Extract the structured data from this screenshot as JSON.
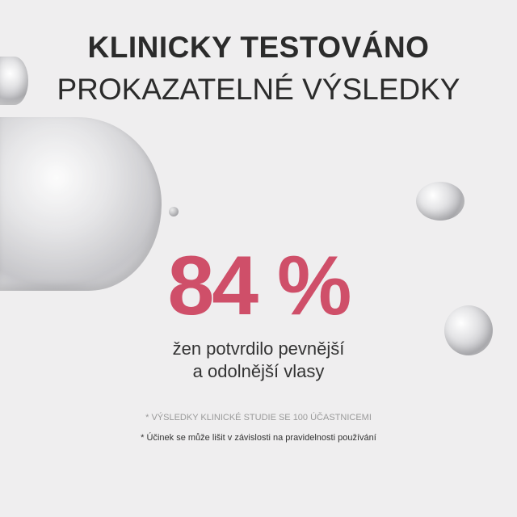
{
  "headline": {
    "line1": "KLINICKY TESTOVÁNO",
    "line2": "PROKAZATELNÉ VÝSLEDKY"
  },
  "stat": {
    "value": "84 %",
    "line1": "žen potvrdilo pevnější",
    "line2": "a odolnější vlasy"
  },
  "notes": [
    "* VÝSLEDKY KLINICKÉ STUDIE SE 100 ÚČASTNICEMI",
    "* Účinek se může lišit v závislosti na pravidelnosti používání"
  ],
  "colors": {
    "background": "#efeeef",
    "accent": "#cf4f69",
    "text": "#2b2b2b"
  }
}
